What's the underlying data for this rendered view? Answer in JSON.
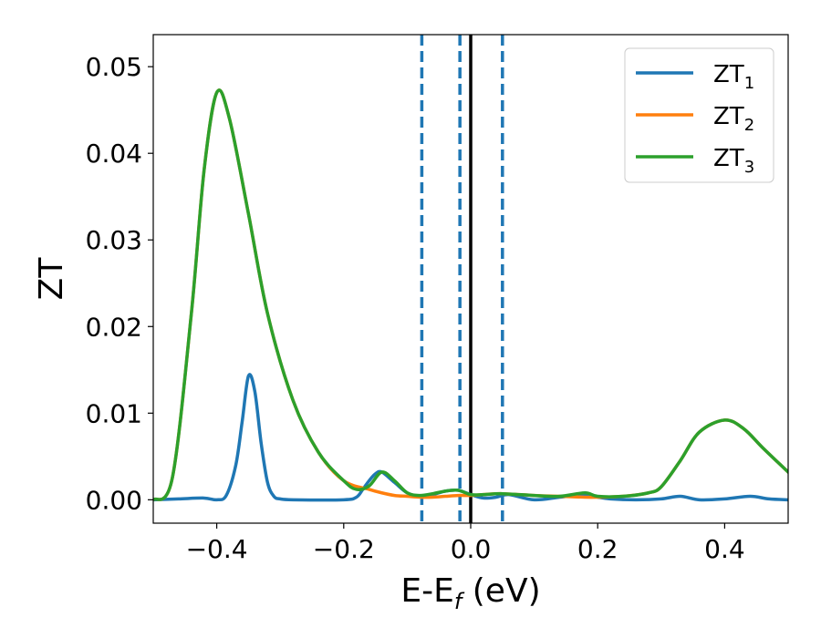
{
  "chart_data": {
    "type": "line",
    "xlabel_main": "E-E",
    "xlabel_sub": "f",
    "xlabel_unit": " (eV)",
    "ylabel": "ZT",
    "xlim": [
      -0.5,
      0.5
    ],
    "ylim": [
      -0.0027,
      0.0537
    ],
    "xticks": [
      -0.4,
      -0.2,
      0.0,
      0.2,
      0.4
    ],
    "xtick_labels": [
      "−0.4",
      "−0.2",
      "0.0",
      "0.2",
      "0.4"
    ],
    "yticks": [
      0.0,
      0.01,
      0.02,
      0.03,
      0.04,
      0.05
    ],
    "ytick_labels": [
      "0.00",
      "0.01",
      "0.02",
      "0.03",
      "0.04",
      "0.05"
    ],
    "legend_position": "top-right",
    "grid": false,
    "vlines_dashed": [
      -0.077,
      -0.017,
      0.05
    ],
    "vline_solid": 0.0,
    "series": [
      {
        "name": "ZT",
        "subscript": "1",
        "color": "#1f77b4",
        "x": [
          -0.5,
          -0.46,
          -0.42,
          -0.4,
          -0.385,
          -0.37,
          -0.36,
          -0.35,
          -0.34,
          -0.33,
          -0.32,
          -0.31,
          -0.3,
          -0.28,
          -0.2,
          -0.18,
          -0.17,
          -0.16,
          -0.15,
          -0.14,
          -0.12,
          -0.1,
          -0.08,
          -0.06,
          -0.04,
          -0.02,
          0.0,
          0.02,
          0.04,
          0.06,
          0.1,
          0.14,
          0.18,
          0.2,
          0.22,
          0.26,
          0.3,
          0.33,
          0.36,
          0.4,
          0.44,
          0.47,
          0.5
        ],
        "y": [
          0.0,
          0.0001,
          0.0002,
          0.0,
          0.0005,
          0.004,
          0.009,
          0.0143,
          0.0125,
          0.0065,
          0.002,
          0.0004,
          0.0001,
          0.0,
          0.0,
          0.0003,
          0.0012,
          0.0022,
          0.003,
          0.0032,
          0.002,
          0.0008,
          0.0004,
          0.0006,
          0.001,
          0.0011,
          0.0006,
          0.0002,
          0.0003,
          0.0006,
          0.0,
          0.0003,
          0.0006,
          0.0003,
          0.0001,
          0.0,
          0.0001,
          0.0004,
          0.0,
          0.0001,
          0.0004,
          0.0001,
          0.0
        ]
      },
      {
        "name": "ZT",
        "subscript": "2",
        "color": "#ff7f0e",
        "x": [
          -0.5,
          -0.47,
          -0.44,
          -0.42,
          -0.4,
          -0.38,
          -0.35,
          -0.32,
          -0.28,
          -0.24,
          -0.2,
          -0.16,
          -0.14,
          -0.12,
          -0.1,
          -0.08,
          -0.06,
          -0.04,
          -0.02,
          0.0,
          0.02,
          0.05,
          0.1,
          0.14,
          0.18,
          0.2,
          0.24,
          0.28,
          0.3,
          0.33,
          0.36,
          0.4,
          0.43,
          0.46,
          0.5
        ],
        "y": [
          0.0,
          0.0025,
          0.0215,
          0.038,
          0.047,
          0.044,
          0.033,
          0.0215,
          0.0115,
          0.0055,
          0.0022,
          0.0012,
          0.0008,
          0.0005,
          0.0004,
          0.0003,
          0.0003,
          0.0004,
          0.0005,
          0.0005,
          0.0006,
          0.0007,
          0.0005,
          0.0004,
          0.0003,
          0.0003,
          0.0004,
          0.0008,
          0.0015,
          0.0045,
          0.0078,
          0.0092,
          0.0082,
          0.006,
          0.0032
        ]
      },
      {
        "name": "ZT",
        "subscript": "3",
        "color": "#2ca02c",
        "x": [
          -0.5,
          -0.47,
          -0.44,
          -0.42,
          -0.4,
          -0.38,
          -0.35,
          -0.32,
          -0.28,
          -0.24,
          -0.2,
          -0.18,
          -0.16,
          -0.14,
          -0.12,
          -0.1,
          -0.08,
          -0.06,
          -0.04,
          -0.02,
          0.0,
          0.02,
          0.05,
          0.1,
          0.14,
          0.18,
          0.2,
          0.24,
          0.28,
          0.3,
          0.33,
          0.36,
          0.4,
          0.43,
          0.46,
          0.5
        ],
        "y": [
          0.0,
          0.0025,
          0.0215,
          0.038,
          0.047,
          0.044,
          0.033,
          0.0215,
          0.0115,
          0.0055,
          0.0022,
          0.0012,
          0.0016,
          0.0032,
          0.0022,
          0.0008,
          0.0005,
          0.0007,
          0.001,
          0.0011,
          0.0006,
          0.0006,
          0.0007,
          0.0005,
          0.0004,
          0.0008,
          0.0004,
          0.0004,
          0.0008,
          0.0015,
          0.0045,
          0.0078,
          0.0092,
          0.0082,
          0.006,
          0.0032
        ]
      }
    ]
  }
}
